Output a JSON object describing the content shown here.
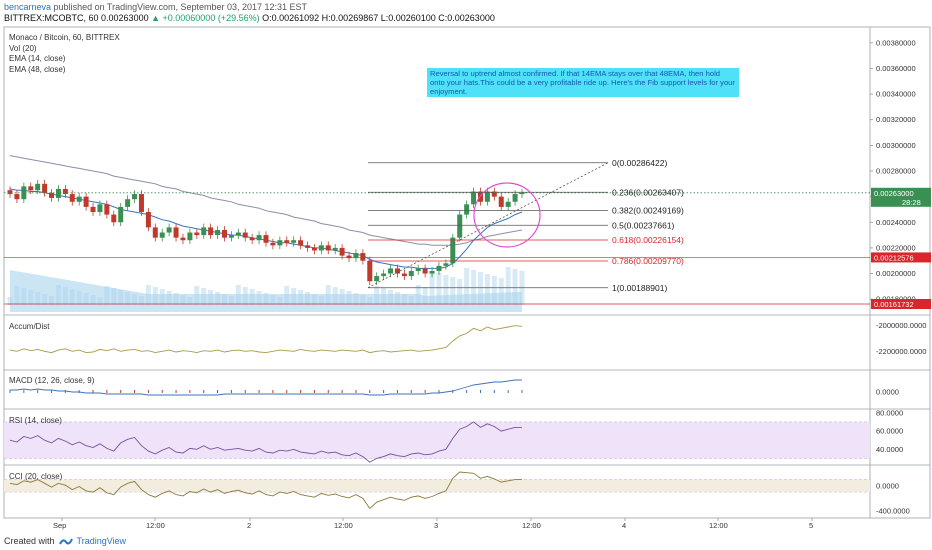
{
  "header": {
    "author": "bencarneva",
    "published": " published on TradingView.com, September 03, 2017 12:31 EST",
    "symbol": "BITTREX:MCOBTC, 60",
    "price": "0.00263000",
    "change": "▲ +0.00060000 (+29.56%)",
    "ohlc": "O:0.00261092 H:0.00269867 L:0.00260100 C:0.00263000"
  },
  "main_labels": {
    "title": "Monaco / Bitcoin, 60, BITTREX",
    "vol": "Vol (20)",
    "ema14": "EMA (14, close)",
    "ema48": "EMA (48, close)"
  },
  "annotation": "Reversal to uptrend almost confirmed. If that 14EMA stays over that 48EMA, then hold onto your hats.This could be a very profitable ride up. Here's the Fib support levels for your enjoyment.",
  "panes": {
    "accum": "Accum/Dist",
    "macd": "MACD (12, 26, close, 9)",
    "rsi": "RSI (14, close)",
    "cci": "CCI (20, close)"
  },
  "footer": {
    "created": "Created with",
    "brand": "TradingView"
  },
  "colors": {
    "up": "#3a8f52",
    "down": "#c0392b",
    "ema14": "#3b73b9",
    "ema48": "#8c8fa6",
    "fib": "#555555",
    "fib_red": "#d9262a",
    "circle": "#e24dd1"
  },
  "chart_data": [
    {
      "type": "candlestick",
      "title": "Monaco / Bitcoin, 60, BITTREX",
      "ylim": [
        0.0017,
        0.0039
      ],
      "y_ticks": [
        "0.00380000",
        "0.00360000",
        "0.00340000",
        "0.00320000",
        "0.00300000",
        "0.00280000",
        "0.00260000",
        "0.00240000",
        "0.00220000",
        "0.00200000",
        "0.00180000"
      ],
      "x_ticks": [
        "Sep",
        "12:00",
        "2",
        "12:00",
        "3",
        "12:00",
        "4",
        "12:00",
        "5"
      ],
      "price_labels": {
        "last": "0.00263000",
        "countdown": "28:28",
        "line1": "0.00212576",
        "line2": "0.00161732"
      },
      "fib_levels": [
        {
          "label": "0(0.00286422)",
          "value": 0.00286422
        },
        {
          "label": "0.236(0.00263407)",
          "value": 0.00263407
        },
        {
          "label": "0.382(0.00249169)",
          "value": 0.00249169
        },
        {
          "label": "0.5(0.00237661)",
          "value": 0.00237661
        },
        {
          "label": "0.618(0.00226154)",
          "value": 0.00226154
        },
        {
          "label": "0.786(0.00209770)",
          "value": 0.0020977
        },
        {
          "label": "1(0.00188901)",
          "value": 0.00188901
        }
      ],
      "candles_close": [
        0.00262,
        0.00258,
        0.00268,
        0.00265,
        0.0027,
        0.00263,
        0.00259,
        0.00266,
        0.00262,
        0.00256,
        0.0026,
        0.00252,
        0.00248,
        0.00254,
        0.00246,
        0.0024,
        0.00252,
        0.00258,
        0.00262,
        0.00248,
        0.00236,
        0.00228,
        0.00232,
        0.00236,
        0.00228,
        0.00226,
        0.00232,
        0.0023,
        0.00236,
        0.0023,
        0.00234,
        0.00228,
        0.0023,
        0.00232,
        0.00228,
        0.00226,
        0.0023,
        0.00224,
        0.00222,
        0.00226,
        0.00224,
        0.00226,
        0.00222,
        0.0022,
        0.00218,
        0.00222,
        0.00218,
        0.0022,
        0.00214,
        0.00212,
        0.00216,
        0.0021,
        0.00194,
        0.00198,
        0.002,
        0.00204,
        0.002,
        0.00198,
        0.00202,
        0.00204,
        0.002,
        0.00202,
        0.00206,
        0.00208,
        0.00228,
        0.00246,
        0.00254,
        0.00264,
        0.00256,
        0.00264,
        0.0026,
        0.00252,
        0.00256,
        0.00262,
        0.00263
      ],
      "ema14_close": [
        0.00266,
        0.00265,
        0.00265,
        0.00264,
        0.00264,
        0.00263,
        0.00262,
        0.00261,
        0.0026,
        0.00259,
        0.00258,
        0.00257,
        0.00256,
        0.00255,
        0.00254,
        0.00252,
        0.0025,
        0.00249,
        0.00248,
        0.00247,
        0.00246,
        0.00244,
        0.00242,
        0.00241,
        0.00239,
        0.00237,
        0.00236,
        0.00235,
        0.00234,
        0.00233,
        0.00232,
        0.00231,
        0.0023,
        0.0023,
        0.00229,
        0.00228,
        0.00227,
        0.00226,
        0.00225,
        0.00224,
        0.00224,
        0.00223,
        0.00222,
        0.00221,
        0.0022,
        0.0022,
        0.00219,
        0.00218,
        0.00217,
        0.00216,
        0.00215,
        0.00214,
        0.00211,
        0.00209,
        0.00208,
        0.00207,
        0.00206,
        0.00205,
        0.00205,
        0.00204,
        0.00204,
        0.00204,
        0.00204,
        0.00205,
        0.00208,
        0.00213,
        0.00219,
        0.00226,
        0.00231,
        0.00236,
        0.00239,
        0.00241,
        0.00243,
        0.00246,
        0.00248
      ],
      "ema48_close": [
        0.00292,
        0.00291,
        0.0029,
        0.00289,
        0.00288,
        0.00287,
        0.00286,
        0.00285,
        0.00284,
        0.00283,
        0.00282,
        0.00281,
        0.0028,
        0.00279,
        0.00278,
        0.00276,
        0.00275,
        0.00274,
        0.00273,
        0.00272,
        0.00271,
        0.0027,
        0.00268,
        0.00267,
        0.00266,
        0.00264,
        0.00263,
        0.00262,
        0.00261,
        0.00259,
        0.00258,
        0.00257,
        0.00256,
        0.00254,
        0.00253,
        0.00252,
        0.00251,
        0.00249,
        0.00248,
        0.00247,
        0.00246,
        0.00244,
        0.00243,
        0.00242,
        0.00241,
        0.00239,
        0.00238,
        0.00237,
        0.00236,
        0.00234,
        0.00233,
        0.00232,
        0.0023,
        0.00229,
        0.00228,
        0.00227,
        0.00226,
        0.00225,
        0.00224,
        0.00223,
        0.00223,
        0.00222,
        0.00222,
        0.00222,
        0.00222,
        0.00223,
        0.00224,
        0.00226,
        0.00227,
        0.00229,
        0.0023,
        0.00231,
        0.00232,
        0.00233,
        0.00234
      ]
    },
    {
      "type": "line",
      "title": "Accum/Dist",
      "y_ticks": [
        "-2000000.0000",
        "-2200000.0000"
      ],
      "ylim": [
        -2330000,
        -1940000
      ],
      "values": [
        -2190000,
        -2200000,
        -2180000,
        -2195000,
        -2185000,
        -2200000,
        -2210000,
        -2190000,
        -2180000,
        -2200000,
        -2190000,
        -2210000,
        -2205000,
        -2185000,
        -2195000,
        -2180000,
        -2200000,
        -2190000,
        -2185000,
        -2200000,
        -2195000,
        -2210000,
        -2200000,
        -2190000,
        -2205000,
        -2195000,
        -2200000,
        -2210000,
        -2195000,
        -2200000,
        -2190000,
        -2205000,
        -2195000,
        -2190000,
        -2200000,
        -2195000,
        -2205000,
        -2210000,
        -2200000,
        -2190000,
        -2195000,
        -2200000,
        -2185000,
        -2195000,
        -2200000,
        -2190000,
        -2195000,
        -2200000,
        -2190000,
        -2195000,
        -2200000,
        -2190000,
        -2210000,
        -2200000,
        -2195000,
        -2205000,
        -2200000,
        -2195000,
        -2190000,
        -2200000,
        -2195000,
        -2190000,
        -2180000,
        -2170000,
        -2120000,
        -2080000,
        -2060000,
        -2020000,
        -2040000,
        -2010000,
        -2030000,
        -2020000,
        -2010000,
        -2000000,
        -2005000
      ]
    },
    {
      "type": "line",
      "title": "MACD (12, 26, close, 9)",
      "y_ticks": [
        "0.0000"
      ],
      "ylim": [
        -0.00015,
        0.0002
      ],
      "values": [
        2e-05,
        2e-05,
        3e-05,
        2e-05,
        3e-05,
        2e-05,
        2e-05,
        1e-05,
        1e-05,
        0.0,
        0.0,
        -1e-05,
        -1e-05,
        -1e-05,
        -2e-05,
        -2e-05,
        -2e-05,
        -2e-05,
        -2e-05,
        -2e-05,
        -3e-05,
        -3e-05,
        -3e-05,
        -3e-05,
        -3e-05,
        -3e-05,
        -3e-05,
        -3e-05,
        -3e-05,
        -3e-05,
        -3e-05,
        -2e-05,
        -2e-05,
        -2e-05,
        -2e-05,
        -2e-05,
        -2e-05,
        -2e-05,
        -2e-05,
        -2e-05,
        -2e-05,
        -2e-05,
        -2e-05,
        -2e-05,
        -2e-05,
        -2e-05,
        -2e-05,
        -2e-05,
        -2e-05,
        -2e-05,
        -2e-05,
        -2e-05,
        -3e-05,
        -3e-05,
        -3e-05,
        -2e-05,
        -2e-05,
        -2e-05,
        -2e-05,
        -2e-05,
        -2e-05,
        -1e-05,
        -1e-05,
        0.0,
        1e-05,
        3e-05,
        5e-05,
        7e-05,
        8e-05,
        9e-05,
        0.0001,
        0.0001,
        0.00011,
        0.00012,
        0.00012
      ]
    },
    {
      "type": "line",
      "title": "RSI (14, close)",
      "y_ticks": [
        "80.0000",
        "60.0000",
        "40.0000"
      ],
      "ylim": [
        25,
        82
      ],
      "band": [
        30,
        70
      ],
      "values": [
        50,
        48,
        54,
        52,
        55,
        50,
        47,
        52,
        49,
        45,
        48,
        44,
        42,
        46,
        41,
        38,
        47,
        51,
        53,
        44,
        38,
        35,
        39,
        42,
        37,
        36,
        41,
        40,
        44,
        40,
        42,
        39,
        40,
        41,
        39,
        38,
        41,
        37,
        36,
        39,
        38,
        40,
        37,
        36,
        35,
        38,
        36,
        37,
        34,
        33,
        36,
        32,
        26,
        30,
        32,
        35,
        33,
        32,
        35,
        36,
        34,
        35,
        38,
        40,
        52,
        62,
        65,
        70,
        64,
        68,
        65,
        60,
        62,
        64,
        64
      ]
    },
    {
      "type": "line",
      "title": "CCI (20, close)",
      "y_ticks": [
        "0.0000",
        "-400.0000"
      ],
      "ylim": [
        -480,
        300
      ],
      "band": [
        -100,
        100
      ],
      "values": [
        40,
        20,
        80,
        60,
        100,
        40,
        -20,
        40,
        10,
        -60,
        -10,
        -80,
        -100,
        -30,
        -110,
        -140,
        -20,
        40,
        70,
        -60,
        -140,
        -180,
        -120,
        -80,
        -140,
        -160,
        -90,
        -110,
        -50,
        -100,
        -60,
        -120,
        -90,
        -70,
        -110,
        -130,
        -80,
        -140,
        -160,
        -100,
        -120,
        -90,
        -140,
        -160,
        -180,
        -120,
        -150,
        -130,
        -170,
        -190,
        -140,
        -200,
        -360,
        -260,
        -220,
        -180,
        -210,
        -230,
        -180,
        -160,
        -200,
        -170,
        -120,
        -80,
        120,
        220,
        210,
        200,
        120,
        150,
        110,
        60,
        80,
        100,
        100
      ]
    }
  ]
}
